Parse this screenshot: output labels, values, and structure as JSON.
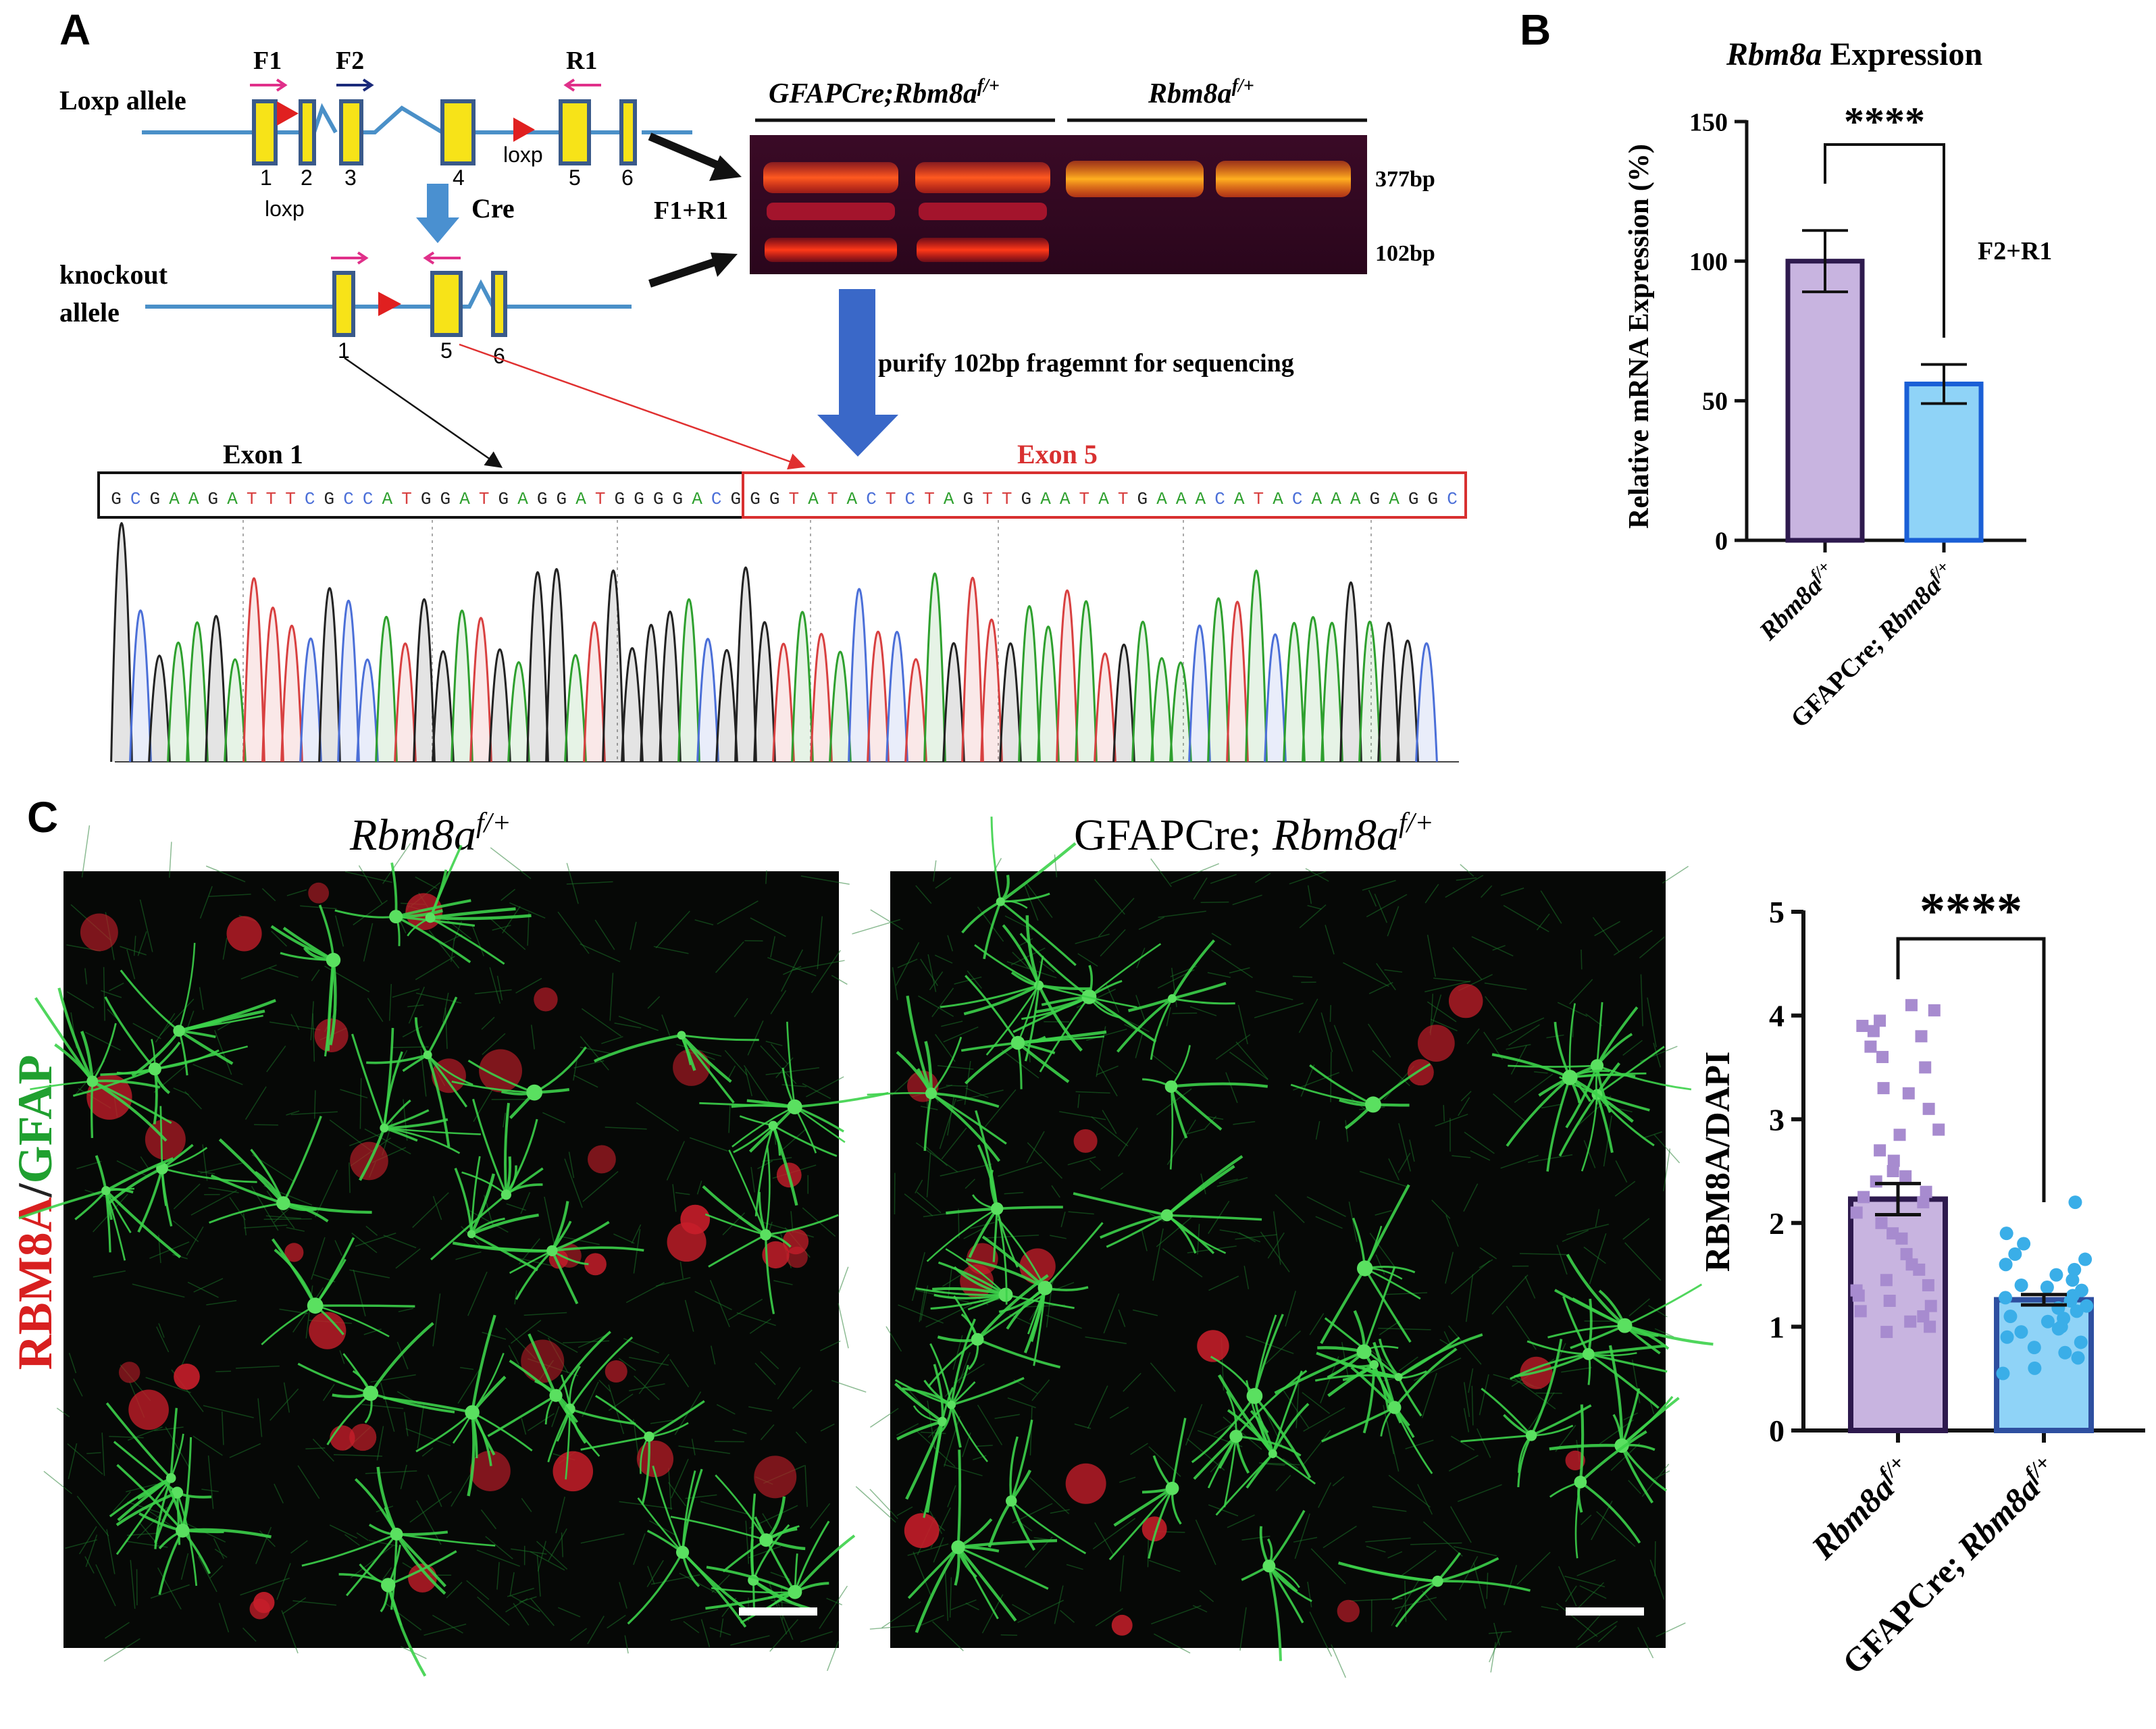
{
  "panels": {
    "a": "A",
    "b": "B",
    "c": "C"
  },
  "panel_a": {
    "loxp_allele_label": "Loxp allele",
    "knockout_allele_label_1": "knockout",
    "knockout_allele_label_2": "allele",
    "primer_f1": "F1",
    "primer_f2": "F2",
    "primer_r1": "R1",
    "loxp_exons": [
      "1",
      "2",
      "3",
      "4",
      "5",
      "6"
    ],
    "ko_exons": [
      "1",
      "5",
      "6"
    ],
    "loxp_label": "loxp",
    "cre_label": "Cre",
    "gel_group_1_prefix": "GFAPCre;Rbm8a",
    "gel_group_1_sup": "f/+",
    "gel_group_2_prefix": "Rbm8a",
    "gel_group_2_sup": "f/+",
    "gel_primers_label": "F1+R1",
    "band_upper_label": "377bp",
    "band_lower_label": "102bp",
    "purify_label": "purify 102bp fragemnt for sequencing",
    "exon1_label": "Exon 1",
    "exon5_label": "Exon 5",
    "exon1_sequence": "GCGAAGATTTCGCCATGGATGAGGATGGGGACG",
    "exon5_sequence": "GGTATACTCTAGTTGAATATGAAACATACAAAGAGGC",
    "base_colors": {
      "A": "#2ea02e",
      "C": "#4b6fd8",
      "G": "#222222",
      "T": "#d84040"
    }
  },
  "panel_b": {
    "chart_data": {
      "type": "bar",
      "title_italic": "Rbm8a",
      "title_rest": " Expression",
      "ylabel": "Relative mRNA Expression (%)",
      "ylim": [
        0,
        150
      ],
      "yticks": [
        "0",
        "50",
        "100",
        "150"
      ],
      "categories": [
        {
          "prefix": "Rbm8a",
          "sup": "f/+",
          "pre": ""
        },
        {
          "prefix": "Rbm8a",
          "sup": "f/+",
          "pre": "GFAPCre; "
        }
      ],
      "values": [
        100,
        56
      ],
      "errors": [
        11,
        7
      ],
      "colors": [
        "#c8b4e0",
        "#8fd3f7"
      ],
      "edge_colors": [
        "#2e1a4e",
        "#1a5fd6"
      ],
      "significance": "****",
      "annotation": "F2+R1"
    }
  },
  "panel_c": {
    "image_left_title_italic": "Rbm8a",
    "image_left_title_sup": "f/+",
    "image_right_title_pre": "GFAPCre; ",
    "image_right_title_italic": "Rbm8a",
    "image_right_title_sup": "f/+",
    "stain_label_red": "RBM8A",
    "stain_label_slash": "/",
    "stain_label_green": "GFAP",
    "chart_data": {
      "type": "bar",
      "ylabel": "RBM8A/DAPI",
      "ylim": [
        0,
        5
      ],
      "yticks": [
        "0",
        "1",
        "2",
        "3",
        "4",
        "5"
      ],
      "categories": [
        {
          "prefix": "Rbm8a",
          "sup": "f/+",
          "pre": ""
        },
        {
          "prefix": "Rbm8a",
          "sup": "f/+",
          "pre": "GFAPCre; "
        }
      ],
      "values": [
        2.23,
        1.26
      ],
      "errors": [
        0.15,
        0.05
      ],
      "colors": [
        "#c8b4e0",
        "#8fd3f7"
      ],
      "edge_colors": [
        "#2e1a4e",
        "#2e4fa0"
      ],
      "point_colors": [
        "#a78bcf",
        "#3aaee8"
      ],
      "significance": "****",
      "points": [
        [
          4.1,
          4.05,
          3.95,
          3.9,
          3.85,
          3.8,
          3.7,
          3.6,
          3.5,
          3.3,
          3.25,
          3.1,
          2.9,
          2.85,
          2.7,
          2.6,
          2.5,
          2.45,
          2.4,
          2.3,
          2.25,
          2.2,
          2.1,
          2.0,
          1.9,
          1.85,
          1.7,
          1.6,
          1.55,
          1.45,
          1.4,
          1.35,
          1.3,
          1.25,
          1.2,
          1.15,
          1.1,
          1.05,
          1.0,
          0.95
        ],
        [
          2.2,
          1.9,
          1.8,
          1.7,
          1.65,
          1.6,
          1.55,
          1.5,
          1.45,
          1.4,
          1.38,
          1.35,
          1.3,
          1.28,
          1.25,
          1.2,
          1.18,
          1.15,
          1.1,
          1.08,
          1.05,
          1.0,
          0.98,
          0.95,
          0.9,
          0.85,
          0.8,
          0.75,
          0.7,
          0.6,
          0.55
        ]
      ]
    }
  }
}
